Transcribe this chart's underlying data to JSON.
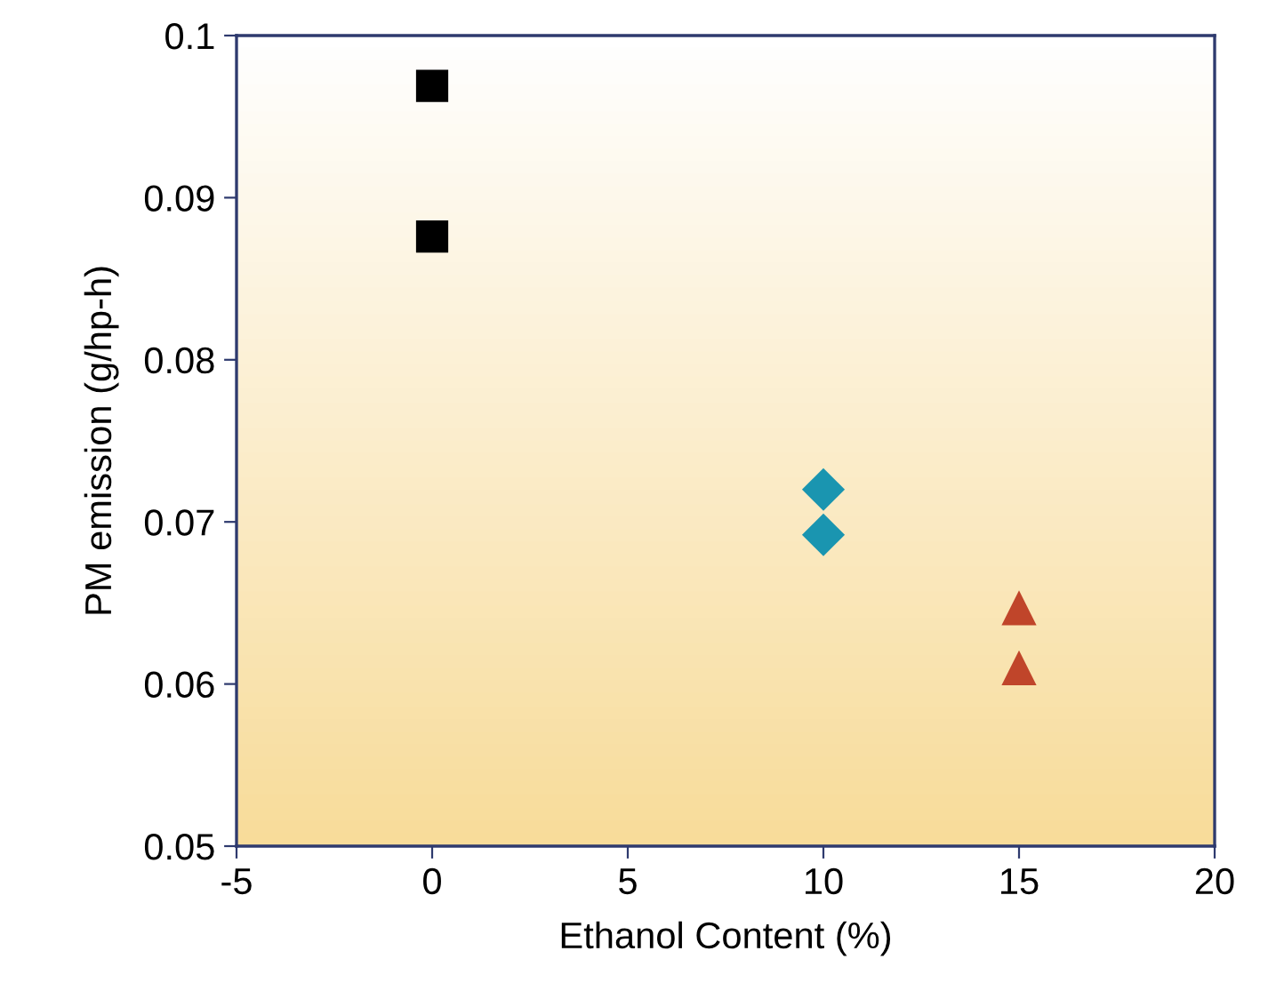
{
  "chart_data": {
    "type": "scatter",
    "xlabel": "Ethanol Content (%)",
    "ylabel": "PM emission (g/hp-h)",
    "series": [
      {
        "color": "#000000",
        "marker": "square",
        "x": [
          0,
          0
        ],
        "values": [
          0.0969,
          0.0876
        ]
      },
      {
        "color": "#1a95b0",
        "marker": "diamond",
        "x": [
          10,
          10
        ],
        "values": [
          0.072,
          0.0692
        ]
      },
      {
        "color": "#c0452a",
        "marker": "triangle",
        "x": [
          15,
          15
        ],
        "values": [
          0.0647,
          0.061
        ]
      }
    ],
    "xlim": [
      -5,
      20
    ],
    "xticks": [
      -5,
      0,
      5,
      10,
      15,
      20
    ],
    "ylim": [
      0.05,
      0.1
    ],
    "yticks": [
      {
        "value": 0.05,
        "label": "0.05"
      },
      {
        "value": 0.06,
        "label": "0.06"
      },
      {
        "value": 0.07,
        "label": "0.07"
      },
      {
        "value": 0.08,
        "label": "0.08"
      },
      {
        "value": 0.09,
        "label": "0.09"
      },
      {
        "value": 0.1,
        "label": "0.1"
      }
    ],
    "grid": false,
    "legend": false
  }
}
